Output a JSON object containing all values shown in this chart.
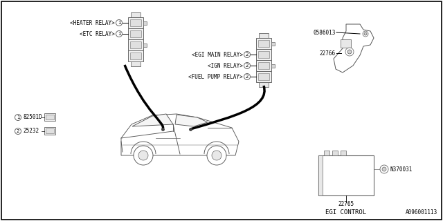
{
  "background_color": "#ffffff",
  "border_color": "#000000",
  "figsize": [
    6.4,
    3.2
  ],
  "dpi": 100,
  "labels": {
    "heater_relay": "<HEATER RELAY>",
    "etc_relay": "<ETC RELAY>",
    "egi_main_relay": "<EGI MAIN RELAY>",
    "ign_relay": "<IGN RELAY>",
    "fuel_pump_relay": "<FUEL PUMP RELAY>",
    "part1": "82501D",
    "part2": "25232",
    "part_0586013": "0586013",
    "part_22766": "22766",
    "part_22765": "22765",
    "part_n370031": "N370031",
    "egi_control": "EGI CONTROL",
    "diagram_num": "A096001113"
  },
  "line_color": "#000000",
  "text_color": "#000000",
  "font_size_small": 5.5,
  "font_size_medium": 6.5,
  "border_width": 1.2
}
